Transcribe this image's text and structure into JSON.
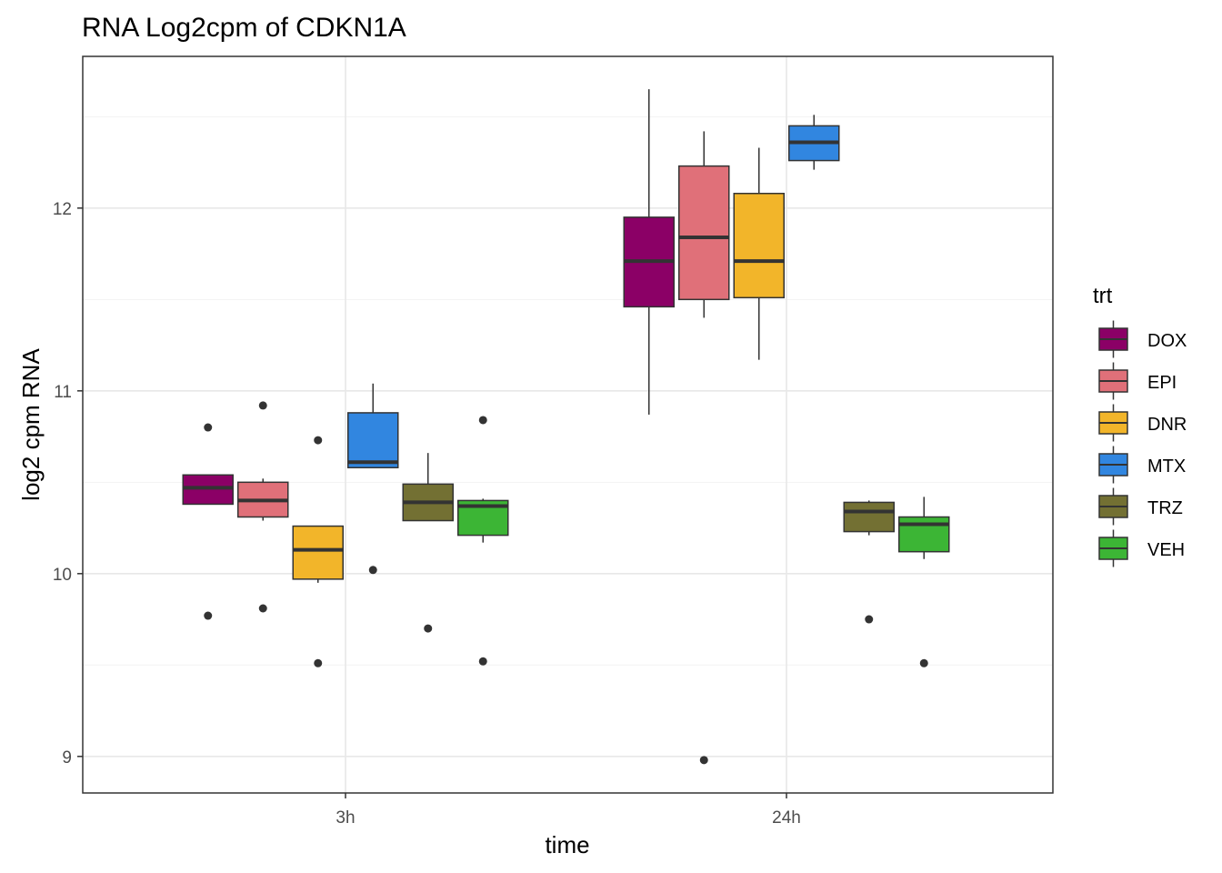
{
  "chart_data": {
    "type": "boxplot",
    "title": "RNA Log2cpm of CDKN1A",
    "xlabel": "time",
    "ylabel": "log2 cpm RNA",
    "ylim": [
      8.8,
      12.83
    ],
    "yticks": [
      9,
      10,
      11,
      12
    ],
    "categories": [
      "3h",
      "24h"
    ],
    "grid": true,
    "legend": {
      "title": "trt",
      "position": "right"
    },
    "series": [
      {
        "name": "DOX",
        "color": "#8B0066",
        "boxes": [
          {
            "group": "3h",
            "min": 10.38,
            "q1": 10.38,
            "median": 10.47,
            "q3": 10.54,
            "max": 10.54,
            "outliers": [
              10.8,
              9.77
            ]
          },
          {
            "group": "24h",
            "min": 10.87,
            "q1": 11.46,
            "median": 11.71,
            "q3": 11.95,
            "max": 12.65,
            "outliers": []
          }
        ]
      },
      {
        "name": "EPI",
        "color": "#E07079",
        "boxes": [
          {
            "group": "3h",
            "min": 10.29,
            "q1": 10.31,
            "median": 10.4,
            "q3": 10.5,
            "max": 10.52,
            "outliers": [
              10.92,
              9.81
            ]
          },
          {
            "group": "24h",
            "min": 11.4,
            "q1": 11.5,
            "median": 11.84,
            "q3": 12.23,
            "max": 12.42,
            "outliers": [
              8.98
            ]
          }
        ]
      },
      {
        "name": "DNR",
        "color": "#F2B52A",
        "boxes": [
          {
            "group": "3h",
            "min": 9.95,
            "q1": 9.97,
            "median": 10.13,
            "q3": 10.26,
            "max": 10.26,
            "outliers": [
              10.73,
              9.51
            ]
          },
          {
            "group": "24h",
            "min": 11.17,
            "q1": 11.51,
            "median": 11.71,
            "q3": 12.08,
            "max": 12.33,
            "outliers": []
          }
        ]
      },
      {
        "name": "MTX",
        "color": "#3186E0",
        "boxes": [
          {
            "group": "3h",
            "min": 10.58,
            "q1": 10.58,
            "median": 10.61,
            "q3": 10.88,
            "max": 11.04,
            "outliers": [
              10.02
            ]
          },
          {
            "group": "24h",
            "min": 12.21,
            "q1": 12.26,
            "median": 12.36,
            "q3": 12.45,
            "max": 12.51,
            "outliers": []
          }
        ]
      },
      {
        "name": "TRZ",
        "color": "#737033",
        "boxes": [
          {
            "group": "3h",
            "min": 10.29,
            "q1": 10.29,
            "median": 10.39,
            "q3": 10.49,
            "max": 10.66,
            "outliers": [
              9.7
            ]
          },
          {
            "group": "24h",
            "min": 10.21,
            "q1": 10.23,
            "median": 10.34,
            "q3": 10.39,
            "max": 10.4,
            "outliers": [
              9.75
            ]
          }
        ]
      },
      {
        "name": "VEH",
        "color": "#3CB535",
        "boxes": [
          {
            "group": "3h",
            "min": 10.17,
            "q1": 10.21,
            "median": 10.37,
            "q3": 10.4,
            "max": 10.41,
            "outliers": [
              10.84,
              9.52
            ]
          },
          {
            "group": "24h",
            "min": 10.08,
            "q1": 10.12,
            "median": 10.27,
            "q3": 10.31,
            "max": 10.42,
            "outliers": [
              9.51
            ]
          }
        ]
      }
    ]
  }
}
